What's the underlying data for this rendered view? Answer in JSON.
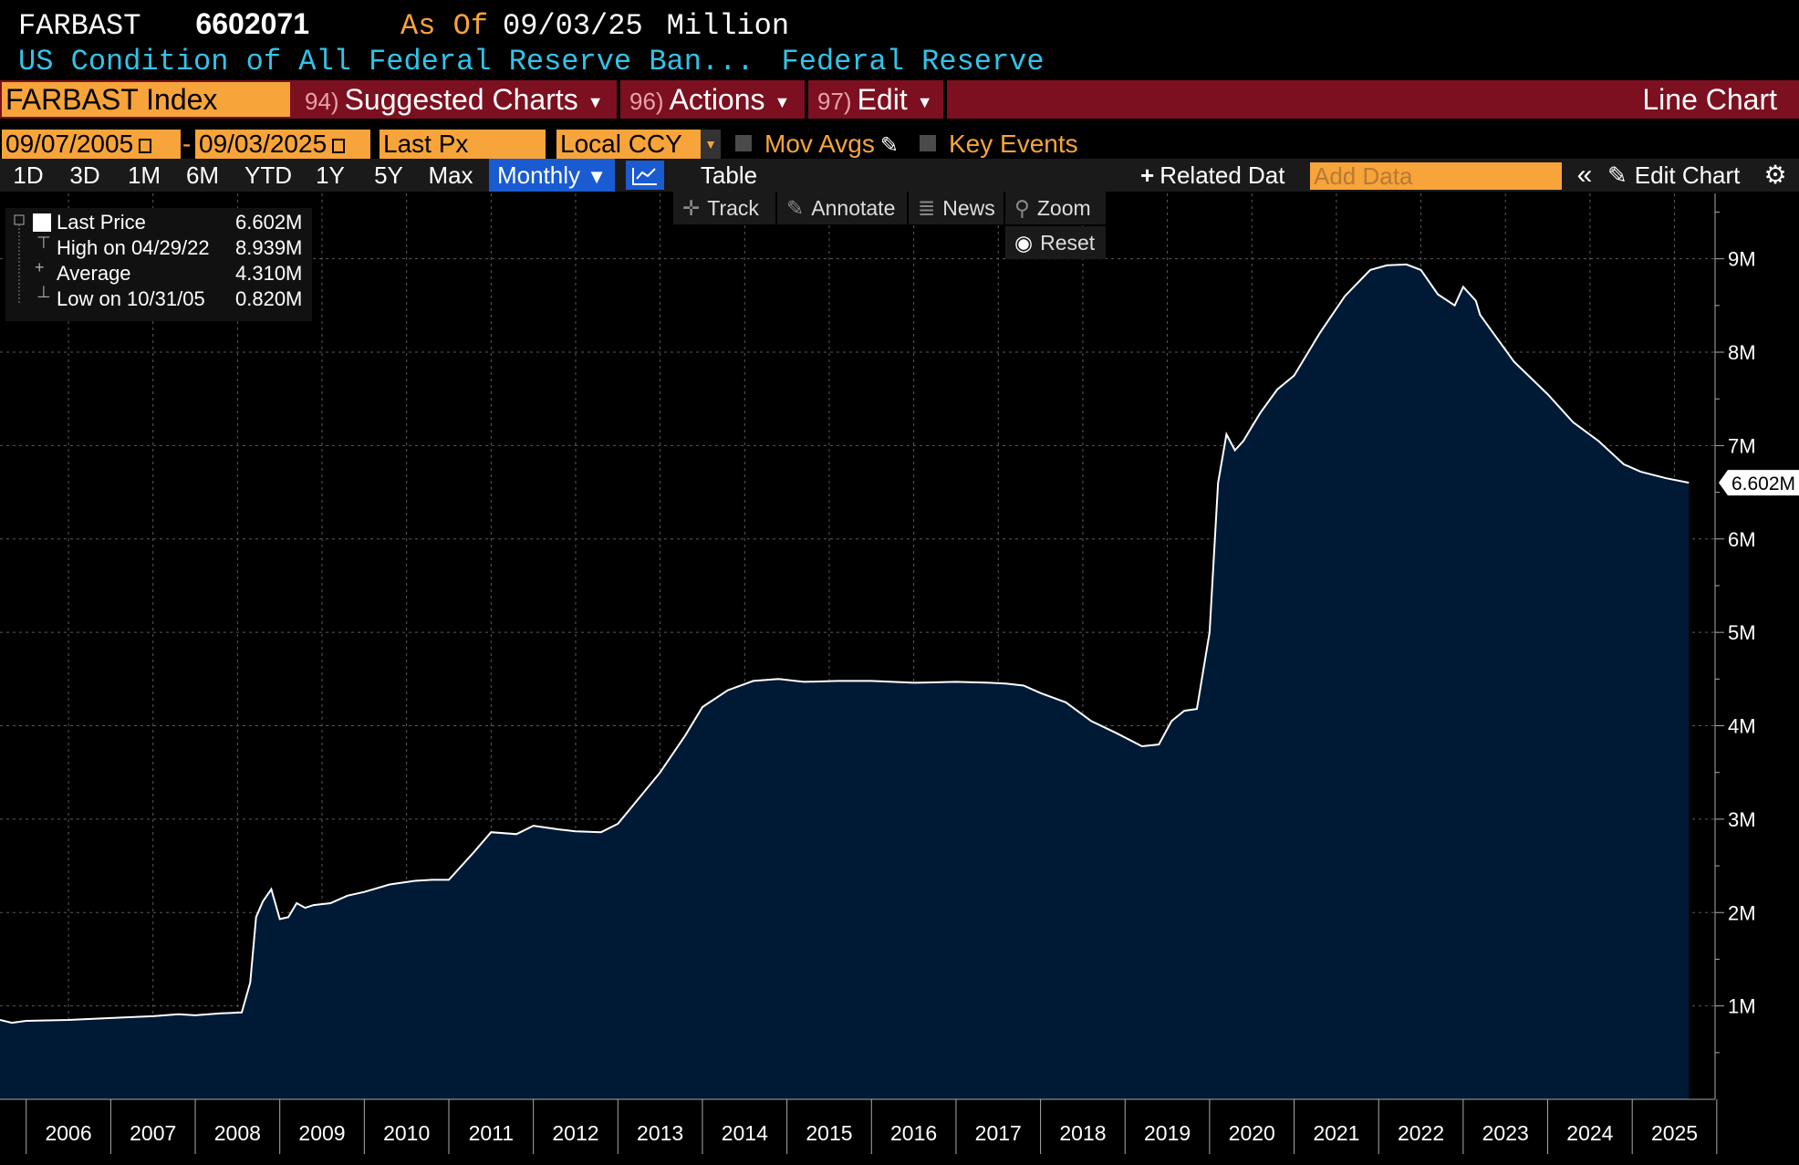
{
  "header": {
    "ticker": "FARBAST",
    "value": "6602071",
    "as_of_label": "As Of",
    "as_of_date": "09/03/25",
    "unit": "Million",
    "description": "US Condition of All Federal Reserve Ban...",
    "source": "Federal Reserve"
  },
  "menu": {
    "security": "FARBAST Index",
    "suggested": {
      "num": "94)",
      "label": "Suggested Charts"
    },
    "actions": {
      "num": "96)",
      "label": "Actions"
    },
    "edit": {
      "num": "97)",
      "label": "Edit"
    },
    "chart_type": "Line Chart"
  },
  "params": {
    "start_date": "09/07/2005",
    "dash": "-",
    "end_date": "09/03/2025",
    "field": "Last Px",
    "currency": "Local CCY",
    "mov_avgs": "Mov Avgs",
    "key_events": "Key Events"
  },
  "periods": [
    "1D",
    "3D",
    "1M",
    "6M",
    "YTD",
    "1Y",
    "5Y",
    "Max"
  ],
  "frequency": "Monthly",
  "table_label": "Table",
  "related_data": "Related Dat",
  "add_data_placeholder": "Add Data",
  "edit_chart": "Edit Chart",
  "tools": {
    "track": "Track",
    "annotate": "Annotate",
    "news": "News",
    "zoom": "Zoom",
    "reset": "Reset"
  },
  "legend": {
    "last_label": "Last Price",
    "last_value": "6.602M",
    "high_label": "High on 04/29/22",
    "high_value": "8.939M",
    "avg_label": "Average",
    "avg_value": "4.310M",
    "low_label": "Low on 10/31/05",
    "low_value": "0.820M"
  },
  "colors": {
    "accent": "#f7a43a",
    "menubar": "#7c1020",
    "area": "#001a36",
    "line": "#ffffff",
    "cyan": "#33c3e8"
  },
  "chart_data": {
    "type": "area",
    "title": "",
    "xlabel": "",
    "ylabel": "",
    "x_ticks": [
      "2006",
      "2007",
      "2008",
      "2009",
      "2010",
      "2011",
      "2012",
      "2013",
      "2014",
      "2015",
      "2016",
      "2017",
      "2018",
      "2019",
      "2020",
      "2021",
      "2022",
      "2023",
      "2024",
      "2025"
    ],
    "y_ticks": [
      "1M",
      "2M",
      "3M",
      "4M",
      "5M",
      "6M",
      "7M",
      "8M",
      "9M"
    ],
    "ylim": [
      0,
      9.7
    ],
    "xlim": [
      2005.69,
      2025.98
    ],
    "last_value_label": "6.602M",
    "grid": true,
    "series": [
      {
        "x": [
          2005.69,
          2005.83,
          2006.0,
          2006.5,
          2007.0,
          2007.5,
          2007.8,
          2008.0,
          2008.3,
          2008.55,
          2008.65,
          2008.72,
          2008.8,
          2008.9,
          2009.0,
          2009.1,
          2009.2,
          2009.3,
          2009.4,
          2009.6,
          2009.8,
          2010.0,
          2010.3,
          2010.6,
          2010.8,
          2011.0,
          2011.3,
          2011.5,
          2011.8,
          2012.0,
          2012.3,
          2012.5,
          2012.8,
          2013.0,
          2013.5,
          2013.8,
          2014.0,
          2014.3,
          2014.6,
          2014.9,
          2015.2,
          2015.6,
          2016.0,
          2016.5,
          2017.0,
          2017.4,
          2017.6,
          2017.8,
          2018.0,
          2018.3,
          2018.6,
          2018.9,
          2019.2,
          2019.4,
          2019.55,
          2019.7,
          2019.85,
          2020.0,
          2020.1,
          2020.2,
          2020.3,
          2020.4,
          2020.5,
          2020.6,
          2020.8,
          2021.0,
          2021.3,
          2021.6,
          2021.9,
          2022.1,
          2022.33,
          2022.5,
          2022.7,
          2022.9,
          2023.0,
          2023.15,
          2023.2,
          2023.4,
          2023.6,
          2024.0,
          2024.3,
          2024.6,
          2024.9,
          2025.1,
          2025.4,
          2025.67
        ],
        "y": [
          0.85,
          0.82,
          0.84,
          0.85,
          0.87,
          0.89,
          0.91,
          0.9,
          0.92,
          0.93,
          1.25,
          1.95,
          2.12,
          2.25,
          1.93,
          1.95,
          2.1,
          2.05,
          2.08,
          2.1,
          2.18,
          2.22,
          2.3,
          2.34,
          2.35,
          2.35,
          2.65,
          2.86,
          2.84,
          2.93,
          2.89,
          2.87,
          2.86,
          2.95,
          3.5,
          3.9,
          4.2,
          4.38,
          4.48,
          4.5,
          4.47,
          4.48,
          4.48,
          4.46,
          4.47,
          4.46,
          4.45,
          4.43,
          4.35,
          4.25,
          4.05,
          3.92,
          3.78,
          3.8,
          4.05,
          4.16,
          4.18,
          5.0,
          6.6,
          7.12,
          6.95,
          7.05,
          7.2,
          7.35,
          7.6,
          7.75,
          8.2,
          8.6,
          8.88,
          8.93,
          8.939,
          8.88,
          8.62,
          8.5,
          8.7,
          8.55,
          8.4,
          8.15,
          7.9,
          7.55,
          7.25,
          7.05,
          6.8,
          6.72,
          6.65,
          6.602
        ]
      }
    ]
  }
}
